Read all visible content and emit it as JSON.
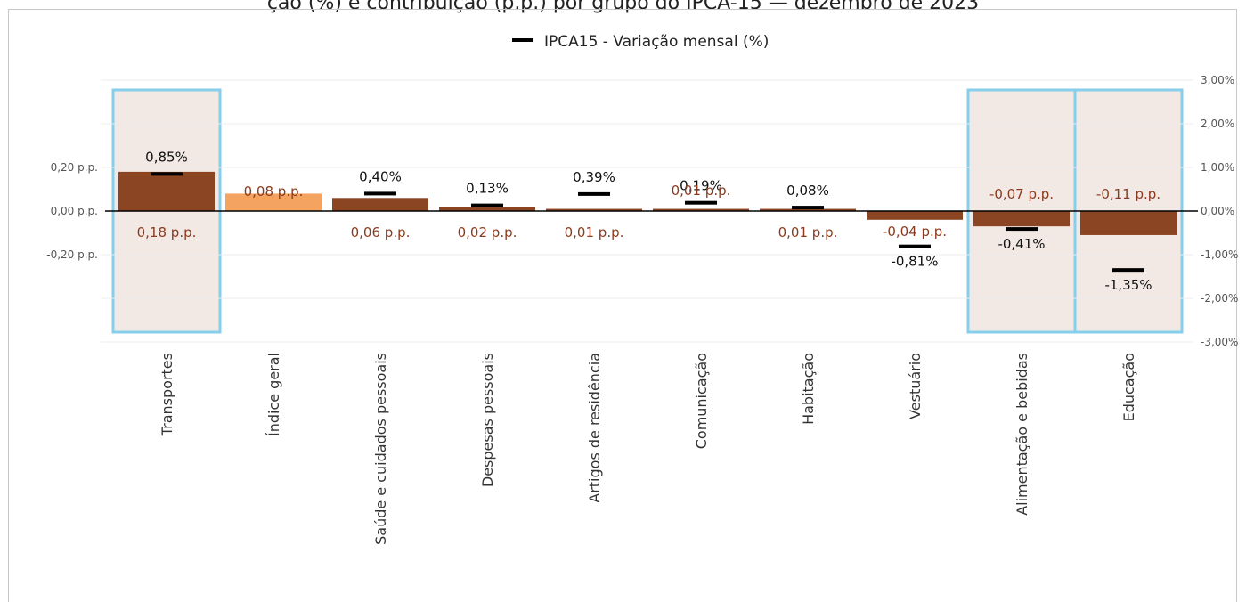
{
  "page_title": "ção (%) e contribuição (p.p.) por grupo do IPCA-15 — dezembro de 2023",
  "chart_data": {
    "type": "bar",
    "legend": {
      "label": "IPCA15 - Variação mensal (%)",
      "position": "top-center"
    },
    "left_axis": {
      "ticks": [
        "0,20 p.p.",
        "0,00 p.p.",
        "-0,20 p.p."
      ],
      "tick_values": [
        0.2,
        0,
        -0.2
      ],
      "ylim": [
        -0.3,
        0.3
      ]
    },
    "right_axis": {
      "ticks": [
        "3,00%",
        "2,00%",
        "1,00%",
        "0,00%",
        "-1,00%",
        "-2,00%",
        "-3,00%"
      ],
      "tick_values": [
        3,
        2,
        1,
        0,
        -1,
        -2,
        -3
      ],
      "ylim": [
        -3,
        3
      ]
    },
    "colors": {
      "bar": "#8b4523",
      "highlight_bar": "#f4a460",
      "highlight_box": "#87ceeb",
      "highlight_fill": "#f2e9e4"
    },
    "categories": [
      "Transportes",
      "Índice geral",
      "Saúde e cuidados pessoais",
      "Despesas pessoais",
      "Artigos de residência",
      "Comunicação",
      "Habitação",
      "Vestuário",
      "Alimentação e bebidas",
      "Educação"
    ],
    "contribution_pp": [
      0.18,
      0.08,
      0.06,
      0.02,
      0.01,
      0.01,
      0.01,
      -0.04,
      -0.07,
      -0.11
    ],
    "contribution_labels": [
      "0,18 p.p.",
      "0,08 p.p.",
      "0,06 p.p.",
      "0,02 p.p.",
      "0,01 p.p.",
      "0,01 p.p.",
      "0,01 p.p.",
      "-0,04 p.p.",
      "-0,07 p.p.",
      "-0,11 p.p."
    ],
    "variation_pct": [
      0.85,
      null,
      0.4,
      0.13,
      0.39,
      0.19,
      0.08,
      -0.81,
      -0.41,
      -1.35
    ],
    "variation_labels": [
      "0,85%",
      "",
      "0,40%",
      "0,13%",
      "0,39%",
      "0,19%",
      "0,08%",
      "-0,81%",
      "-0,41%",
      "-1,35%"
    ],
    "highlighted": [
      true,
      false,
      false,
      false,
      false,
      false,
      false,
      false,
      true,
      true
    ]
  }
}
